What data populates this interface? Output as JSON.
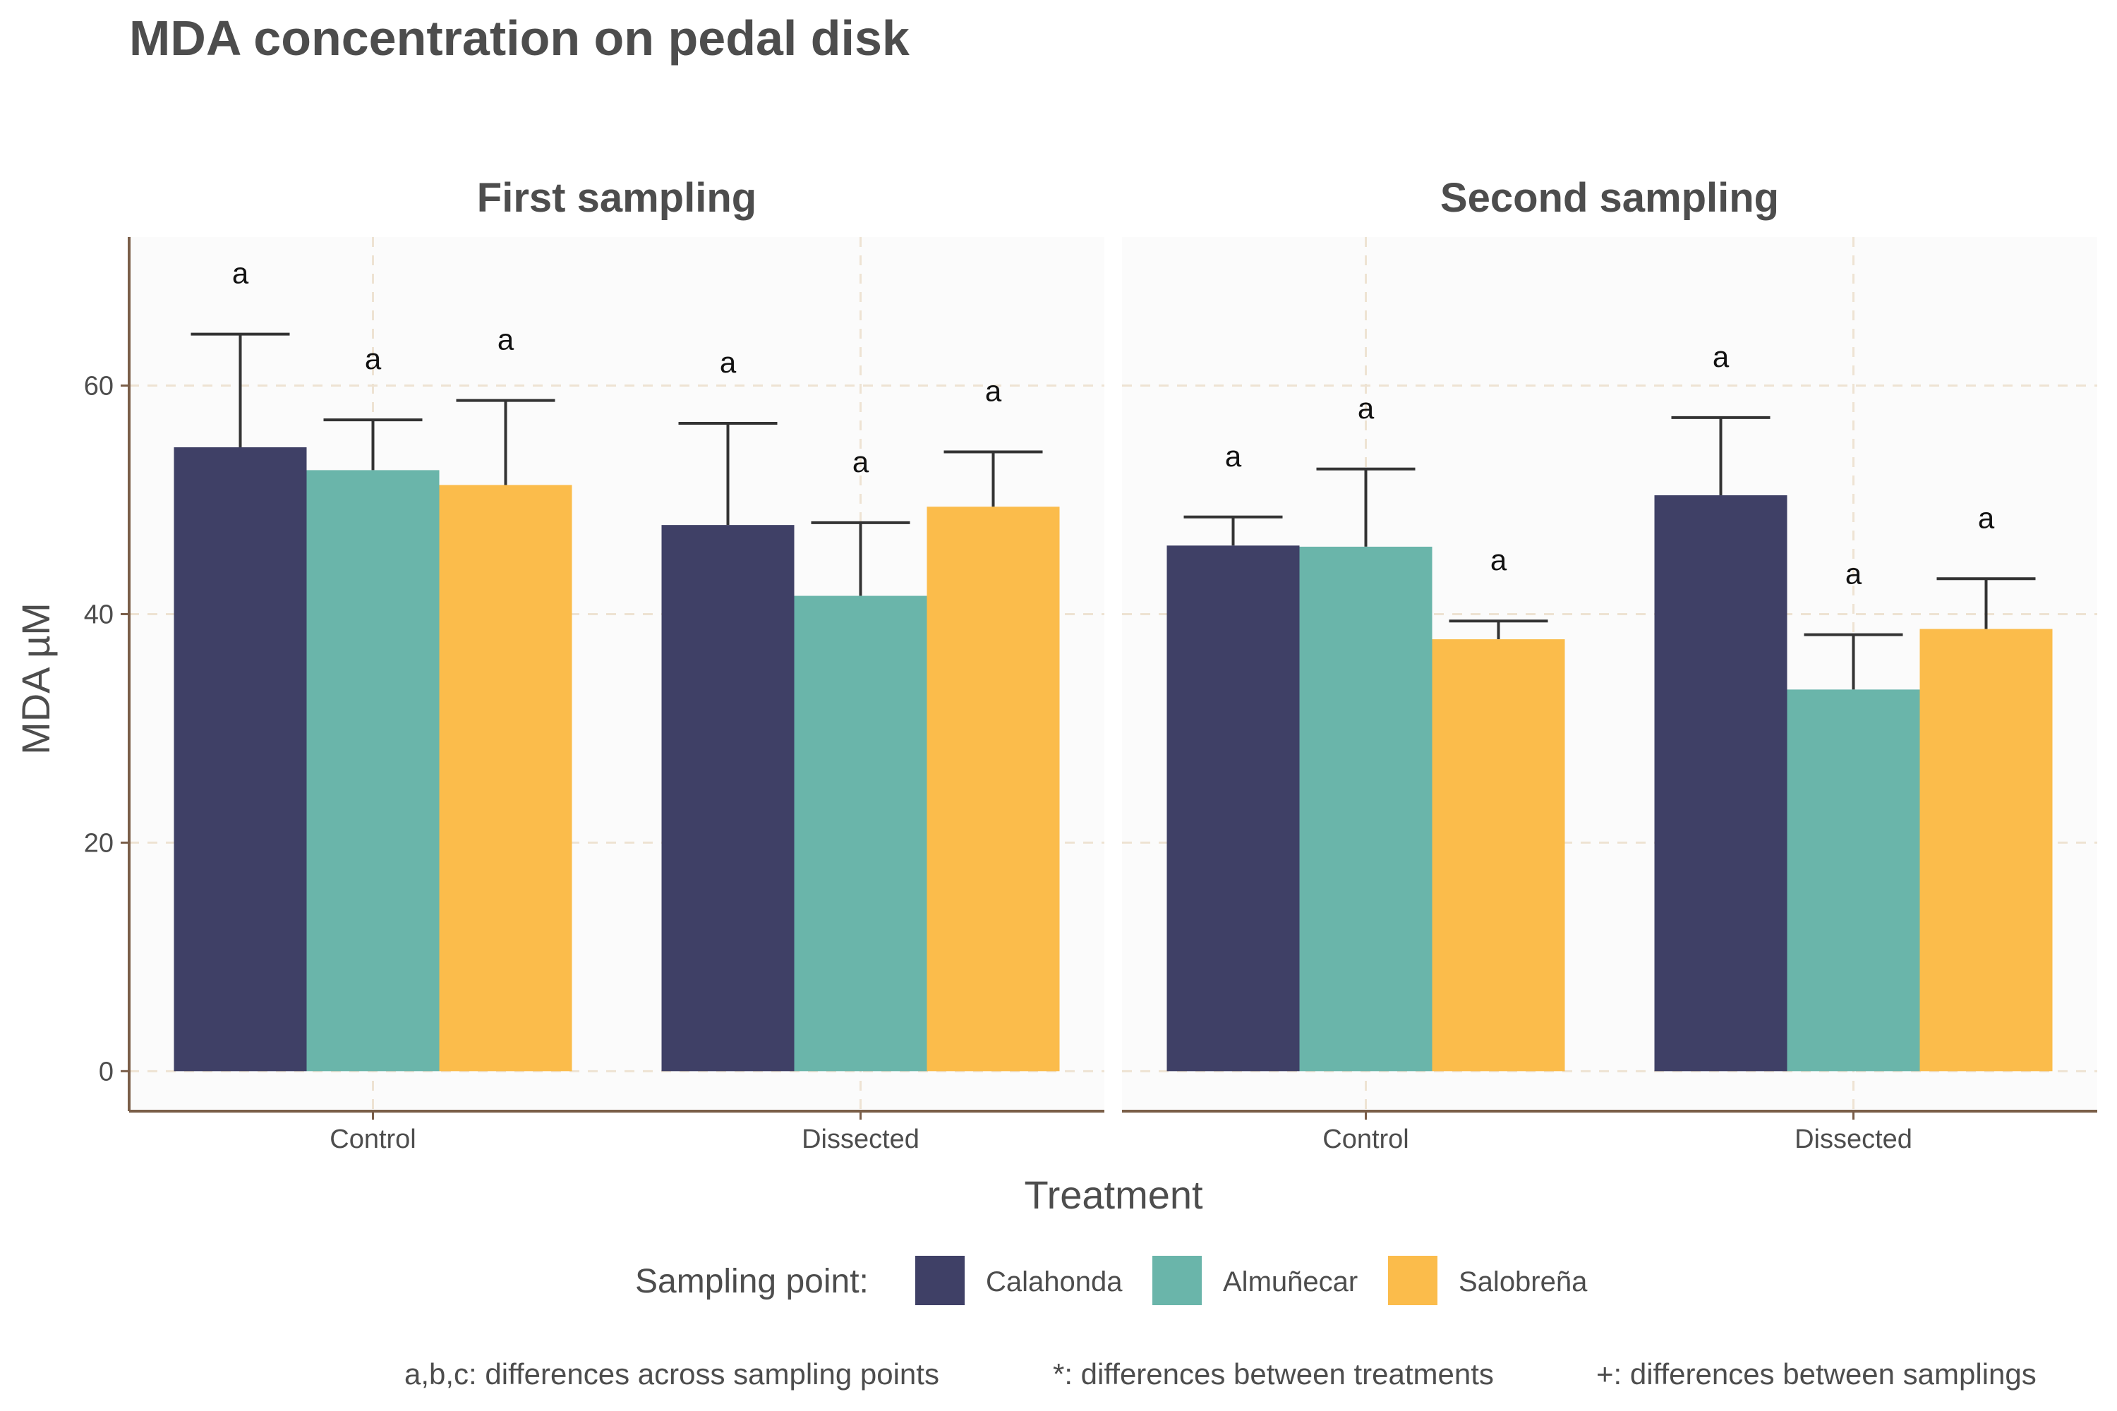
{
  "chart_data": {
    "type": "bar",
    "title": "MDA concentration on pedal disk",
    "xlabel": "Treatment",
    "ylabel": "MDA µM",
    "ylim": [
      -3.5,
      73
    ],
    "yticks": [
      0,
      20,
      40,
      60
    ],
    "grid": true,
    "legend": {
      "title": "Sampling point:",
      "position": "bottom",
      "entries": [
        "Calahonda",
        "Almuñecar",
        "Salobreña"
      ]
    },
    "series_colors": {
      "Calahonda": "#3f4066",
      "Almuñecar": "#6ab5aa",
      "Salobreña": "#fbbc4b"
    },
    "categories": [
      "Control",
      "Dissected"
    ],
    "facets": [
      {
        "title": "First sampling",
        "series": [
          {
            "name": "Calahonda",
            "values": [
              54.6,
              47.8
            ],
            "errors": [
              9.9,
              8.9
            ],
            "labels": [
              "a",
              "a"
            ]
          },
          {
            "name": "Almuñecar",
            "values": [
              52.6,
              41.6
            ],
            "errors": [
              4.4,
              6.4
            ],
            "labels": [
              "a",
              "a"
            ]
          },
          {
            "name": "Salobreña",
            "values": [
              51.3,
              49.4
            ],
            "errors": [
              7.4,
              4.8
            ],
            "labels": [
              "a",
              "a"
            ]
          }
        ]
      },
      {
        "title": "Second sampling",
        "series": [
          {
            "name": "Calahonda",
            "values": [
              46.0,
              50.4
            ],
            "errors": [
              2.5,
              6.8
            ],
            "labels": [
              "a",
              "a"
            ]
          },
          {
            "name": "Almuñecar",
            "values": [
              45.9,
              33.4
            ],
            "errors": [
              6.8,
              4.8
            ],
            "labels": [
              "a",
              "a"
            ]
          },
          {
            "name": "Salobreña",
            "values": [
              37.8,
              38.7
            ],
            "errors": [
              1.6,
              4.4
            ],
            "labels": [
              "a",
              "a"
            ]
          }
        ]
      }
    ],
    "footnote": [
      "a,b,c: differences across sampling points",
      "*: differences between treatments",
      "+: differences between samplings"
    ]
  }
}
